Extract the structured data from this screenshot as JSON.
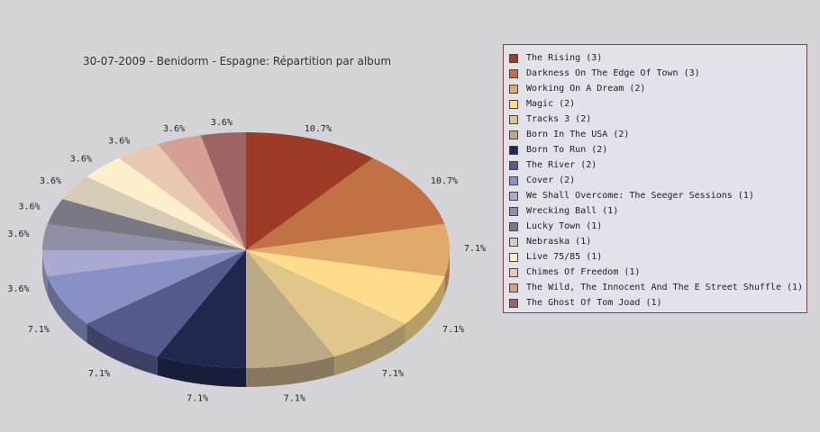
{
  "chart_data": {
    "type": "pie",
    "title": "30-07-2009 - Benidorm - Espagne:  Répartition par album",
    "slices": [
      {
        "label": "The Rising (3)",
        "value": 3,
        "pct_label": "10.7%",
        "color": "#9e3b26"
      },
      {
        "label": "Darkness On The Edge Of Town (3)",
        "value": 3,
        "pct_label": "10.7%",
        "color": "#c17144"
      },
      {
        "label": "Working On A Dream (2)",
        "value": 2,
        "pct_label": "7.1%",
        "color": "#e0aa6a"
      },
      {
        "label": "Magic (2)",
        "value": 2,
        "pct_label": "7.1%",
        "color": "#fedc8c"
      },
      {
        "label": "Tracks 3 (2)",
        "value": 2,
        "pct_label": "7.1%",
        "color": "#e1c68c"
      },
      {
        "label": "Born In The USA (2)",
        "value": 2,
        "pct_label": "7.1%",
        "color": "#bba884"
      },
      {
        "label": "Born To Run (2)",
        "value": 2,
        "pct_label": "7.1%",
        "color": "#212850"
      },
      {
        "label": "The River (2)",
        "value": 2,
        "pct_label": "7.1%",
        "color": "#535a8c"
      },
      {
        "label": "Cover (2)",
        "value": 2,
        "pct_label": "7.1%",
        "color": "#8990c4"
      },
      {
        "label": "We Shall Overcome: The Seeger Sessions (1)",
        "value": 1,
        "pct_label": "3.6%",
        "color": "#a8aad4"
      },
      {
        "label": "Wrecking Ball (1)",
        "value": 1,
        "pct_label": "3.6%",
        "color": "#8f90a8"
      },
      {
        "label": "Lucky Town (1)",
        "value": 1,
        "pct_label": "3.6%",
        "color": "#7a7884"
      },
      {
        "label": "Nebraska (1)",
        "value": 1,
        "pct_label": "3.6%",
        "color": "#d6ccb6"
      },
      {
        "label": "Live 75/85 (1)",
        "value": 1,
        "pct_label": "3.6%",
        "color": "#fdefcc"
      },
      {
        "label": "Chimes Of Freedom (1)",
        "value": 1,
        "pct_label": "3.6%",
        "color": "#e8c8b0"
      },
      {
        "label": "The Wild, The Innocent And The E Street Shuffle (1)",
        "value": 1,
        "pct_label": "3.6%",
        "color": "#d4a094"
      },
      {
        "label": "The Ghost Of Tom Joad (1)",
        "value": 1,
        "pct_label": "3.6%",
        "color": "#9c6464"
      }
    ],
    "legend_position": "right"
  }
}
